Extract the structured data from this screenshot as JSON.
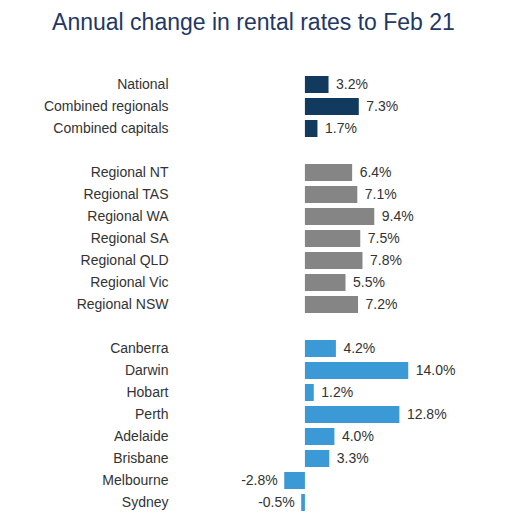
{
  "chart_data": {
    "type": "bar",
    "orientation": "horizontal",
    "title": "Annual change in rental rates to Feb 21",
    "categories": [
      "National",
      "Combined regionals",
      "Combined capitals",
      null,
      "Regional NT",
      "Regional TAS",
      "Regional WA",
      "Regional SA",
      "Regional QLD",
      "Regional Vic",
      "Regional NSW",
      null,
      "Canberra",
      "Darwin",
      "Hobart",
      "Perth",
      "Adelaide",
      "Brisbane",
      "Melbourne",
      "Sydney"
    ],
    "values": [
      3.2,
      7.3,
      1.7,
      null,
      6.4,
      7.1,
      9.4,
      7.5,
      7.8,
      5.5,
      7.2,
      null,
      4.2,
      14.0,
      1.2,
      12.8,
      4.0,
      3.3,
      -2.8,
      -0.5
    ],
    "value_labels": [
      "3.2%",
      "7.3%",
      "1.7%",
      null,
      "6.4%",
      "7.1%",
      "9.4%",
      "7.5%",
      "7.8%",
      "5.5%",
      "7.2%",
      null,
      "4.2%",
      "14.0%",
      "1.2%",
      "12.8%",
      "4.0%",
      "3.3%",
      "-2.8%",
      "-0.5%"
    ],
    "colors": [
      "#123a5e",
      "#123a5e",
      "#123a5e",
      null,
      "#858585",
      "#858585",
      "#858585",
      "#858585",
      "#858585",
      "#858585",
      "#858585",
      null,
      "#3b9ad6",
      "#3b9ad6",
      "#3b9ad6",
      "#3b9ad6",
      "#3b9ad6",
      "#3b9ad6",
      "#3b9ad6",
      "#3b9ad6"
    ],
    "xlim": [
      -5,
      16
    ],
    "data_labels": true,
    "grid": false,
    "tick_labels": "y"
  }
}
